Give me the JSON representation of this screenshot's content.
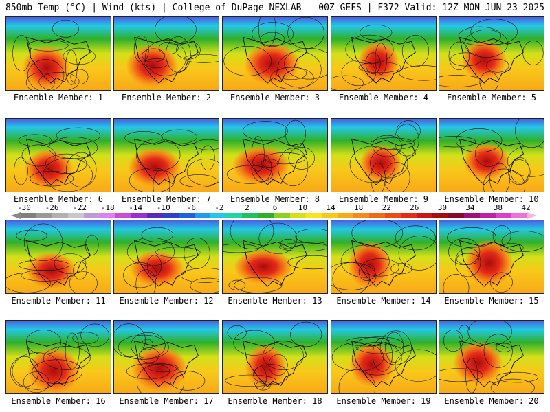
{
  "header": {
    "left": "850mb Temp (°C) | Wind (kts) | College of DuPage NEXLAB",
    "right": "00Z GEFS | F372 Valid: 12Z MON JUN 23 2025"
  },
  "colorbar": {
    "ticks": [
      "-30",
      "-26",
      "-22",
      "-18",
      "-14",
      "-10",
      "-6",
      "-2",
      "2",
      "6",
      "10",
      "14",
      "18",
      "22",
      "26",
      "30",
      "34",
      "38",
      "42"
    ],
    "colors": [
      "#7f7f7f",
      "#999999",
      "#b0b0b0",
      "#c8c8c8",
      "#bc9bd8",
      "#e07df0",
      "#d04ad8",
      "#9b2fd0",
      "#5a2ab8",
      "#2e3fc8",
      "#1e62e0",
      "#1f9cf0",
      "#23c8e6",
      "#1fd6a8",
      "#1fc060",
      "#2fb02a",
      "#8ed01e",
      "#d4e01a",
      "#f7e51e",
      "#f8c81a",
      "#f8a918",
      "#f68a17",
      "#f26a16",
      "#ee4a16",
      "#e62a18",
      "#cc1515",
      "#a80d0d",
      "#8a0a2a",
      "#a0107a",
      "#c020a8",
      "#dc40c8",
      "#ee70dc"
    ]
  },
  "members": [
    {
      "label": "Ensemble Member: 1"
    },
    {
      "label": "Ensemble Member: 2"
    },
    {
      "label": "Ensemble Member: 3"
    },
    {
      "label": "Ensemble Member: 4"
    },
    {
      "label": "Ensemble Member: 5"
    },
    {
      "label": "Ensemble Member: 6"
    },
    {
      "label": "Ensemble Member: 7"
    },
    {
      "label": "Ensemble Member: 8"
    },
    {
      "label": "Ensemble Member: 9"
    },
    {
      "label": "Ensemble Member: 10"
    },
    {
      "label": "Ensemble Member: 11"
    },
    {
      "label": "Ensemble Member: 12"
    },
    {
      "label": "Ensemble Member: 13"
    },
    {
      "label": "Ensemble Member: 14"
    },
    {
      "label": "Ensemble Member: 15"
    },
    {
      "label": "Ensemble Member: 16"
    },
    {
      "label": "Ensemble Member: 17"
    },
    {
      "label": "Ensemble Member: 18"
    },
    {
      "label": "Ensemble Member: 19"
    },
    {
      "label": "Ensemble Member: 20"
    }
  ]
}
